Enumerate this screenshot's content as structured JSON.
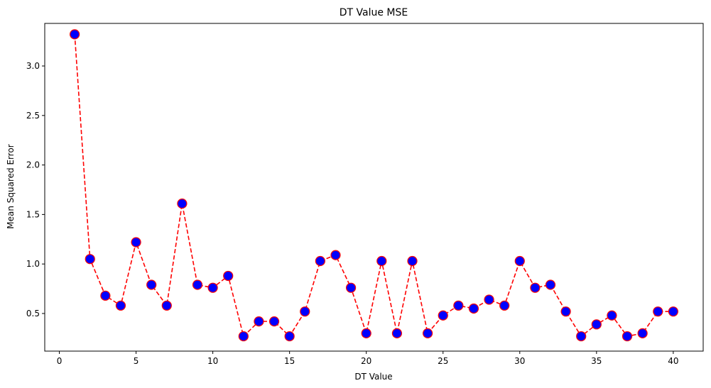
{
  "chart_data": {
    "type": "line",
    "title": "DT Value MSE",
    "xlabel": "DT Value",
    "ylabel": "Mean Squared Error",
    "xlim": [
      -0.95,
      41.95
    ],
    "ylim": [
      0.12,
      3.43
    ],
    "xticks": [
      0,
      5,
      10,
      15,
      20,
      25,
      30,
      35,
      40
    ],
    "yticks": [
      0.5,
      1.0,
      1.5,
      2.0,
      2.5,
      3.0
    ],
    "ytick_labels": [
      "0.5",
      "1.0",
      "1.5",
      "2.0",
      "2.5",
      "3.0"
    ],
    "grid": false,
    "legend": "none",
    "line_color": "#ff0000",
    "line_style": "dashed",
    "marker_face": "#0000ff",
    "marker_edge": "#ff0000",
    "series": [
      {
        "x": [
          1,
          2,
          3,
          4,
          5,
          6,
          7,
          8,
          9,
          10,
          11,
          12,
          13,
          14,
          15,
          16,
          17,
          18,
          19,
          20,
          21,
          22,
          23,
          24,
          25,
          26,
          27,
          28,
          29,
          30,
          31,
          32,
          33,
          34,
          35,
          36,
          37,
          38,
          39,
          40
        ],
        "values": [
          3.32,
          1.05,
          0.68,
          0.58,
          1.22,
          0.79,
          0.58,
          1.61,
          0.79,
          0.76,
          0.88,
          0.27,
          0.42,
          0.42,
          0.27,
          0.52,
          1.03,
          1.09,
          0.76,
          0.3,
          1.03,
          0.3,
          1.03,
          0.3,
          0.48,
          0.58,
          0.55,
          0.64,
          0.58,
          1.03,
          0.76,
          0.79,
          0.52,
          0.27,
          0.39,
          0.48,
          0.27,
          0.3,
          0.52,
          0.52
        ]
      }
    ]
  }
}
